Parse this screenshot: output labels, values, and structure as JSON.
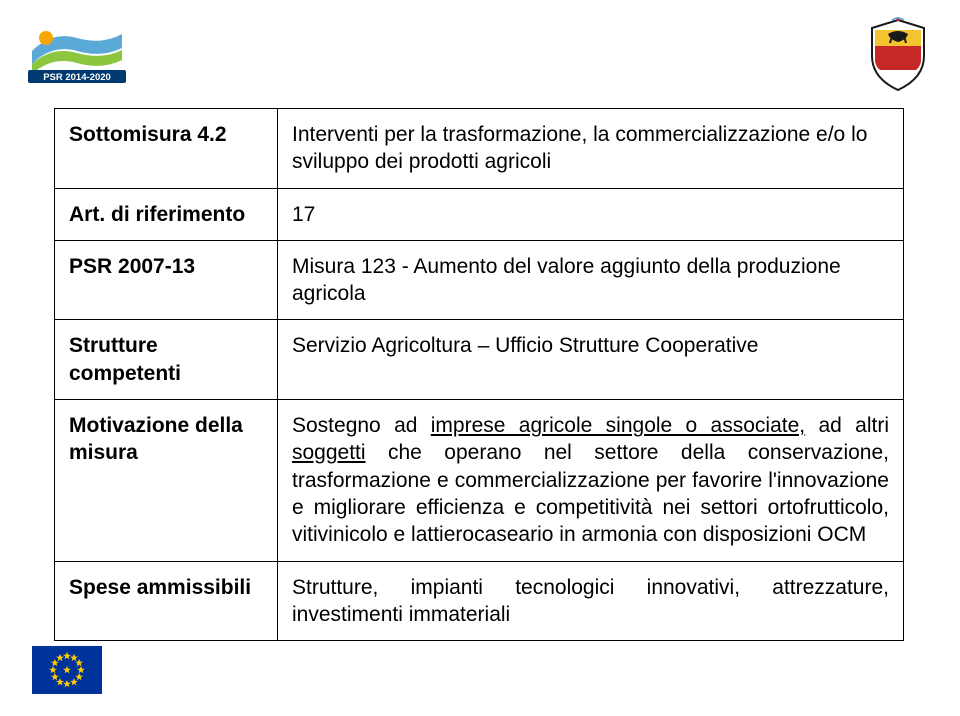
{
  "logos": {
    "psr": {
      "primary": "#5aa9d6",
      "secondary": "#8cc63f",
      "accent": "#f7a600",
      "text": "PSR 2014-2020",
      "text_bg": "#003a70",
      "text_color": "#ffffff"
    },
    "shield": {
      "border": "#1a1a1a",
      "top": "#f4c430",
      "mid": "#c62828",
      "bottom": "#ffffff",
      "eagle": "#1a1a1a"
    },
    "eu": {
      "bg": "#003399",
      "star": "#ffcc00"
    }
  },
  "table": {
    "rows": [
      {
        "label": "Sottomisura 4.2",
        "value_html": "Interventi per la trasformazione, la commercializzazione e/o lo sviluppo dei prodotti agricoli",
        "justify": false
      },
      {
        "label": "Art. di riferimento",
        "value_html": "17",
        "justify": false
      },
      {
        "label": "PSR 2007-13",
        "value_html": "Misura 123 - Aumento del valore aggiunto della produzione agricola",
        "justify": false
      },
      {
        "label": "Strutture competenti",
        "value_html": "Servizio Agricoltura – Ufficio Strutture Cooperative",
        "justify": false
      },
      {
        "label": "Motivazione della misura",
        "value_html": "Sostegno ad <span class=\"u\">imprese agricole singole o associate,</span> ad altri <span class=\"u\">soggetti</span> che operano nel settore della conservazione, trasformazione e commercializzazione per favorire l'innovazione e migliorare efficienza e competitività nei settori ortofrutticolo, vitivinicolo e lattierocaseario in armonia con disposizioni OCM",
        "justify": true
      },
      {
        "label": "Spese ammissibili",
        "value_html": "Strutture, impianti tecnologici innovativi, attrezzature, investimenti immateriali",
        "justify": true
      }
    ]
  }
}
